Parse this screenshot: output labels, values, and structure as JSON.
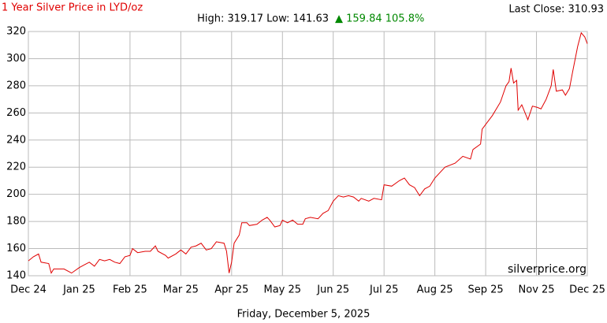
{
  "chart_data": {
    "type": "line",
    "title": "1 Year Silver Price in LYD/oz",
    "last_close": "Last Close: 310.93",
    "stats": "High: 319.17 Low: 141.63",
    "change": "▲ 159.84 105.8%",
    "watermark": "silverprice.org",
    "date": "Friday, December 5, 2025",
    "color": "#e00000",
    "x": [
      0,
      0.1,
      0.2,
      0.25,
      0.4,
      0.45,
      0.5,
      0.7,
      0.85,
      1.0,
      1.1,
      1.2,
      1.3,
      1.4,
      1.5,
      1.6,
      1.7,
      1.8,
      1.9,
      2.0,
      2.05,
      2.15,
      2.3,
      2.4,
      2.5,
      2.55,
      2.7,
      2.75,
      2.9,
      3.0,
      3.1,
      3.2,
      3.3,
      3.4,
      3.5,
      3.6,
      3.7,
      3.85,
      3.9,
      3.95,
      4.0,
      4.05,
      4.15,
      4.2,
      4.3,
      4.35,
      4.5,
      4.6,
      4.7,
      4.75,
      4.85,
      4.95,
      5.0,
      5.1,
      5.2,
      5.3,
      5.4,
      5.45,
      5.55,
      5.7,
      5.8,
      5.9,
      6.0,
      6.1,
      6.2,
      6.3,
      6.4,
      6.5,
      6.55,
      6.7,
      6.8,
      6.95,
      7.0,
      7.15,
      7.3,
      7.4,
      7.5,
      7.6,
      7.7,
      7.8,
      7.9,
      8.0,
      8.2,
      8.4,
      8.55,
      8.7,
      8.75,
      8.9,
      8.93,
      9.05,
      9.13,
      9.29,
      9.4,
      9.46,
      9.5,
      9.55,
      9.61,
      9.64,
      9.71,
      9.83,
      9.92,
      10.02,
      10.09,
      10.19,
      10.29,
      10.33,
      10.39,
      10.51,
      10.57,
      10.65,
      10.71,
      10.81,
      10.88,
      10.95,
      11.0
    ],
    "values": [
      151,
      154,
      156,
      150,
      149,
      142,
      145,
      145,
      142,
      146,
      148,
      150,
      147,
      152,
      151,
      152,
      150,
      149,
      154,
      155,
      160,
      157,
      158,
      158,
      162,
      158,
      155,
      153,
      156,
      159,
      156,
      161,
      162,
      164,
      159,
      160,
      165,
      164,
      158,
      142,
      150,
      164,
      170,
      179,
      179,
      177,
      178,
      181,
      183,
      181,
      176,
      177,
      181,
      179,
      181,
      178,
      178,
      182,
      183,
      182,
      186,
      188,
      195,
      199,
      198,
      199,
      198,
      195,
      197,
      195,
      197,
      196,
      207,
      206,
      210,
      212,
      207,
      205,
      199,
      204,
      206,
      212,
      220,
      223,
      228,
      226,
      233,
      237,
      248,
      254,
      258,
      268,
      280,
      283,
      293,
      282,
      284,
      262,
      266,
      255,
      265,
      264,
      263,
      270,
      280,
      292,
      276,
      277,
      273,
      278,
      290,
      309,
      319,
      316,
      311
    ],
    "xlim": [
      0,
      11
    ],
    "xticks": [
      {
        "value": 0,
        "label": "Dec 24"
      },
      {
        "value": 1,
        "label": "Jan 25"
      },
      {
        "value": 2,
        "label": "Feb 25"
      },
      {
        "value": 3,
        "label": "Mar 25"
      },
      {
        "value": 4,
        "label": "Apr 25"
      },
      {
        "value": 5,
        "label": "May 25"
      },
      {
        "value": 6,
        "label": "Jun 25"
      },
      {
        "value": 7,
        "label": "Jul 25"
      },
      {
        "value": 8,
        "label": "Aug 25"
      },
      {
        "value": 9,
        "label": "Sep 25"
      },
      {
        "value": 10,
        "label": "Nov 25"
      },
      {
        "value": 11,
        "label": "Dec 25"
      }
    ],
    "ylim": [
      140,
      320
    ],
    "yticks": [
      140,
      160,
      180,
      200,
      220,
      240,
      260,
      280,
      300,
      320
    ],
    "grid": true
  }
}
